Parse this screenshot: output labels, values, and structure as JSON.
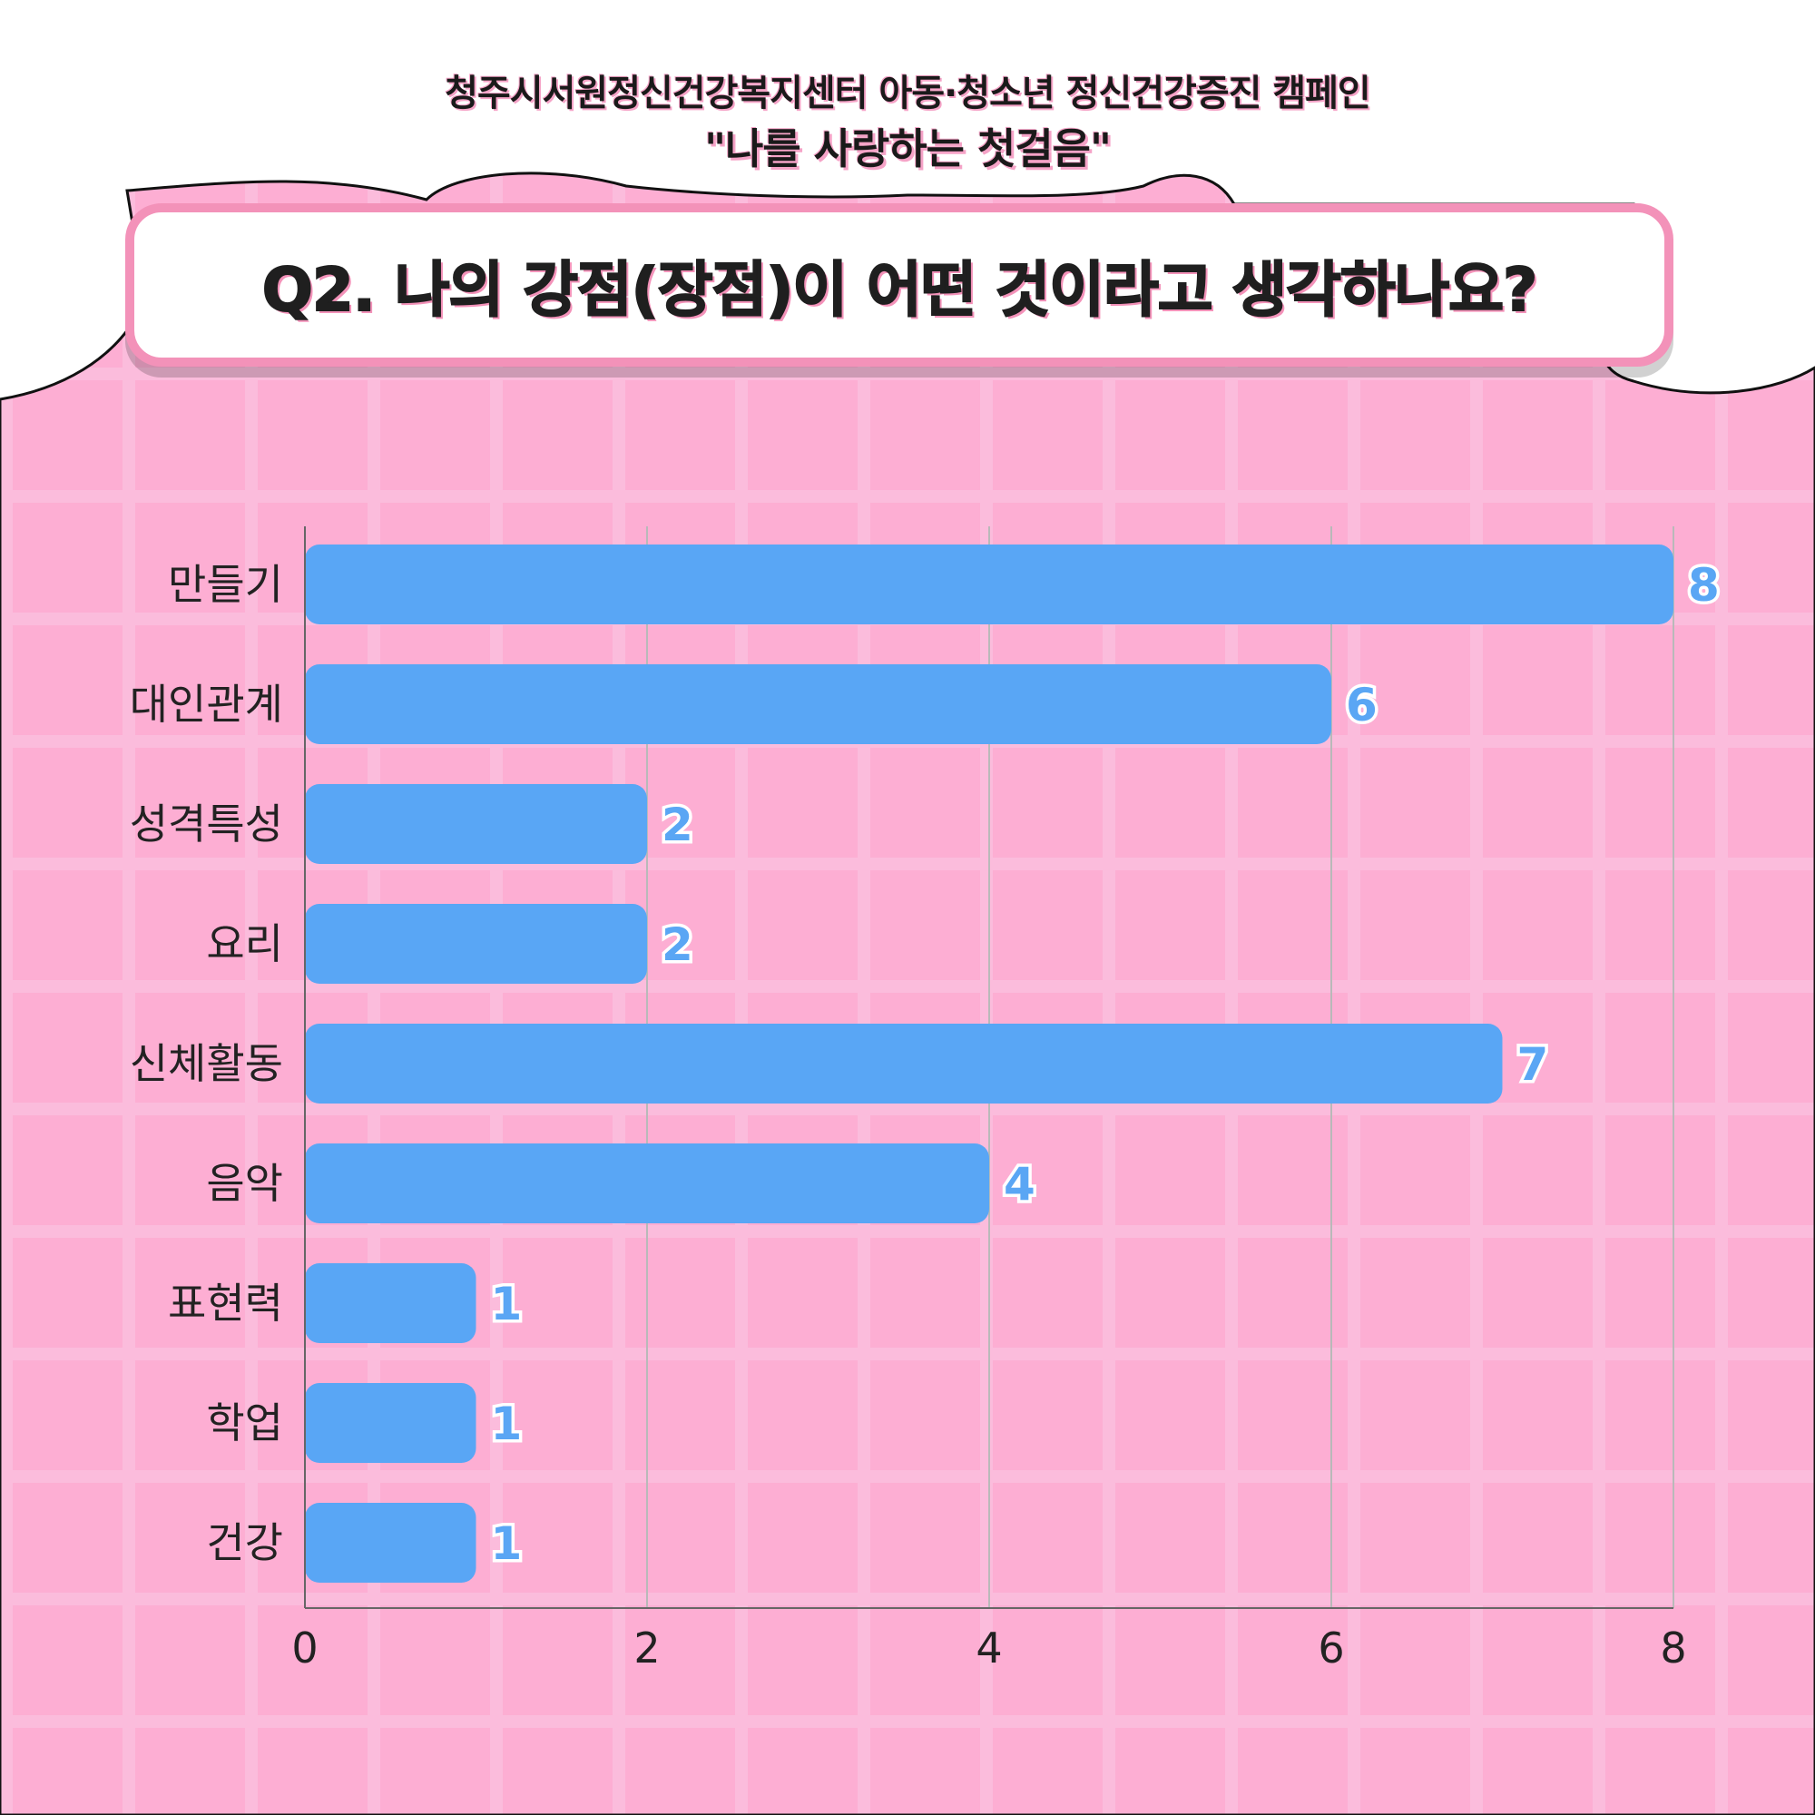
{
  "header": {
    "line1": "청주시서원정신건강복지센터 아동·청소년 정신건강증진 캠페인",
    "line2": "\"나를 사랑하는 첫걸음\""
  },
  "question": "Q2. 나의 강점(장점)이 어떤 것이라고 생각하나요?",
  "colors": {
    "bar": "#59a6f5",
    "background": "#fdaed3",
    "accent": "#f392b9"
  },
  "chart_data": {
    "type": "bar",
    "orientation": "horizontal",
    "categories": [
      "만들기",
      "대인관계",
      "성격특성",
      "요리",
      "신체활동",
      "음악",
      "표현력",
      "학업",
      "건강"
    ],
    "values": [
      8,
      6,
      2,
      2,
      7,
      4,
      1,
      1,
      1
    ],
    "xlim": [
      0,
      8
    ],
    "xticks": [
      0,
      2,
      4,
      6,
      8
    ],
    "grid": true,
    "legend": "none"
  }
}
